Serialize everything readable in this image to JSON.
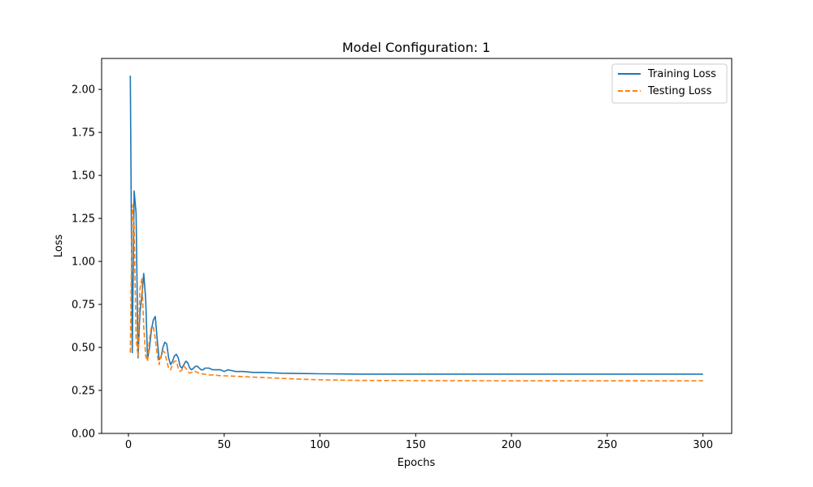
{
  "chart_data": {
    "type": "line",
    "title": "Model Configuration: 1",
    "xlabel": "Epochs",
    "ylabel": "Loss",
    "xlim": [
      -14,
      315
    ],
    "ylim": [
      0,
      2.18
    ],
    "xticks": [
      0,
      50,
      100,
      150,
      200,
      250,
      300
    ],
    "xtick_labels": [
      "0",
      "50",
      "100",
      "150",
      "200",
      "250",
      "300"
    ],
    "yticks": [
      0,
      0.25,
      0.5,
      0.75,
      1.0,
      1.25,
      1.5,
      1.75,
      2.0
    ],
    "ytick_labels": [
      "0.00",
      "0.25",
      "0.50",
      "0.75",
      "1.00",
      "1.25",
      "1.50",
      "1.75",
      "2.00"
    ],
    "grid": false,
    "legend_position": "top-right",
    "series": [
      {
        "name": "Training Loss",
        "color": "#1f77b4",
        "dash": "solid",
        "x": [
          1,
          2,
          3,
          4,
          5,
          6,
          7,
          8,
          9,
          10,
          11,
          12,
          13,
          14,
          15,
          16,
          17,
          18,
          19,
          20,
          21,
          22,
          23,
          24,
          25,
          26,
          27,
          28,
          29,
          30,
          31,
          32,
          33,
          34,
          35,
          36,
          37,
          38,
          39,
          40,
          42,
          44,
          46,
          48,
          50,
          52,
          54,
          56,
          58,
          60,
          65,
          70,
          80,
          90,
          100,
          110,
          120,
          150,
          200,
          250,
          300
        ],
        "y": [
          2.08,
          0.47,
          1.41,
          1.28,
          0.44,
          0.7,
          0.8,
          0.93,
          0.78,
          0.43,
          0.5,
          0.6,
          0.66,
          0.68,
          0.55,
          0.43,
          0.44,
          0.5,
          0.53,
          0.52,
          0.44,
          0.4,
          0.42,
          0.45,
          0.46,
          0.44,
          0.39,
          0.38,
          0.4,
          0.42,
          0.41,
          0.38,
          0.37,
          0.38,
          0.39,
          0.39,
          0.38,
          0.37,
          0.37,
          0.38,
          0.38,
          0.37,
          0.37,
          0.37,
          0.36,
          0.37,
          0.365,
          0.36,
          0.36,
          0.36,
          0.355,
          0.355,
          0.35,
          0.348,
          0.347,
          0.346,
          0.345,
          0.345,
          0.345,
          0.345,
          0.345
        ]
      },
      {
        "name": "Testing Loss",
        "color": "#ff7f0e",
        "dash": "dashed",
        "x": [
          1,
          2,
          3,
          4,
          5,
          6,
          7,
          8,
          9,
          10,
          11,
          12,
          13,
          14,
          15,
          16,
          17,
          18,
          19,
          20,
          21,
          22,
          23,
          24,
          25,
          26,
          27,
          28,
          29,
          30,
          31,
          32,
          33,
          34,
          35,
          36,
          37,
          38,
          39,
          40,
          42,
          44,
          46,
          48,
          50,
          55,
          60,
          70,
          80,
          90,
          100,
          110,
          120,
          150,
          200,
          250,
          300
        ],
        "y": [
          0.47,
          1.33,
          1.2,
          0.55,
          0.45,
          0.84,
          0.9,
          0.62,
          0.45,
          0.42,
          0.55,
          0.62,
          0.62,
          0.55,
          0.46,
          0.4,
          0.45,
          0.48,
          0.47,
          0.42,
          0.38,
          0.37,
          0.4,
          0.42,
          0.42,
          0.38,
          0.36,
          0.37,
          0.39,
          0.38,
          0.36,
          0.35,
          0.355,
          0.36,
          0.36,
          0.355,
          0.35,
          0.348,
          0.345,
          0.345,
          0.34,
          0.34,
          0.338,
          0.336,
          0.335,
          0.333,
          0.33,
          0.325,
          0.32,
          0.315,
          0.312,
          0.31,
          0.308,
          0.307,
          0.306,
          0.306,
          0.306
        ]
      }
    ]
  }
}
